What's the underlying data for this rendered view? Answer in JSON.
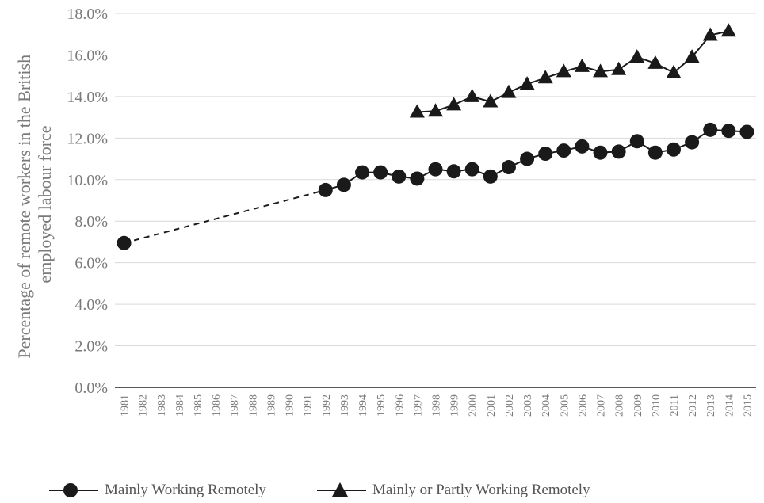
{
  "chart_data": {
    "type": "line",
    "title": "",
    "xlabel": "",
    "ylabel_lines": [
      "Percentage of remote workers in the British",
      "employed labour force"
    ],
    "x": [
      1981,
      1982,
      1983,
      1984,
      1985,
      1986,
      1987,
      1988,
      1989,
      1990,
      1991,
      1992,
      1993,
      1994,
      1995,
      1996,
      1997,
      1998,
      1999,
      2000,
      2001,
      2002,
      2003,
      2004,
      2005,
      2006,
      2007,
      2008,
      2009,
      2010,
      2011,
      2012,
      2013,
      2014,
      2015
    ],
    "ylim": [
      0,
      18
    ],
    "yticks": [
      0,
      2,
      4,
      6,
      8,
      10,
      12,
      14,
      16,
      18
    ],
    "ytick_labels": [
      "0.0%",
      "2.0%",
      "4.0%",
      "6.0%",
      "8.0%",
      "10.0%",
      "12.0%",
      "14.0%",
      "16.0%",
      "18.0%"
    ],
    "grid": "horizontal",
    "legend_position": "bottom",
    "series": [
      {
        "name": "Mainly Working Remotely",
        "marker": "circle",
        "color": "#1a1a1a",
        "dashed_gap": [
          1981,
          1992
        ],
        "values": [
          6.95,
          null,
          null,
          null,
          null,
          null,
          null,
          null,
          null,
          null,
          null,
          9.5,
          9.75,
          10.35,
          10.35,
          10.15,
          10.05,
          10.5,
          10.4,
          10.5,
          10.15,
          10.6,
          11.0,
          11.25,
          11.4,
          11.6,
          11.3,
          11.35,
          11.85,
          11.3,
          11.45,
          11.8,
          12.4,
          12.35,
          12.3
        ]
      },
      {
        "name": "Mainly or Partly Working Remotely",
        "marker": "triangle",
        "color": "#1a1a1a",
        "values": [
          null,
          null,
          null,
          null,
          null,
          null,
          null,
          null,
          null,
          null,
          null,
          null,
          null,
          null,
          null,
          null,
          13.25,
          13.3,
          13.6,
          14.0,
          13.75,
          14.2,
          14.6,
          14.9,
          15.2,
          15.45,
          15.2,
          15.3,
          15.9,
          15.6,
          15.15,
          15.9,
          16.95,
          17.15,
          null
        ]
      }
    ]
  }
}
